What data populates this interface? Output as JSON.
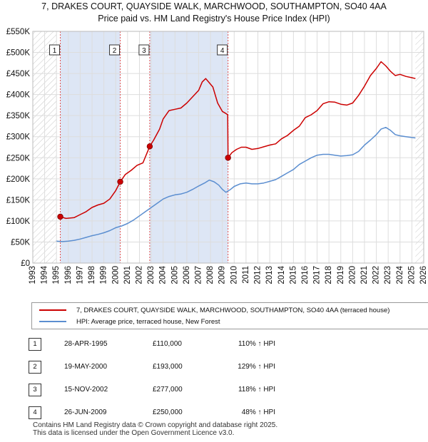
{
  "title_line1": "7, DRAKES COURT, QUAYSIDE WALK, MARCHWOOD, SOUTHAMPTON, SO40 4AA",
  "title_line2": "Price paid vs. HM Land Registry's House Price Index (HPI)",
  "colors": {
    "property": "#cc0000",
    "hpi": "#5b8ed0",
    "shade": "#dde6f5",
    "grid": "#dddddd",
    "marker_line": "#e05050"
  },
  "chart_data": {
    "type": "line",
    "title": "7, DRAKES COURT, QUAYSIDE WALK, MARCHWOOD, SOUTHAMPTON, SO40 4AA",
    "subtitle": "Price paid vs. HM Land Registry's House Price Index (HPI)",
    "xlim": [
      1993,
      2026
    ],
    "ylim": [
      0,
      550000
    ],
    "x_ticks": [
      1993,
      1994,
      1995,
      1996,
      1997,
      1998,
      1999,
      2000,
      2001,
      2002,
      2003,
      2004,
      2005,
      2006,
      2007,
      2008,
      2009,
      2010,
      2011,
      2012,
      2013,
      2014,
      2015,
      2016,
      2017,
      2018,
      2019,
      2020,
      2021,
      2022,
      2023,
      2024,
      2025,
      2026
    ],
    "y_ticks": [
      {
        "value": 0,
        "label": "£0"
      },
      {
        "value": 50000,
        "label": "£50K"
      },
      {
        "value": 100000,
        "label": "£100K"
      },
      {
        "value": 150000,
        "label": "£150K"
      },
      {
        "value": 200000,
        "label": "£200K"
      },
      {
        "value": 250000,
        "label": "£250K"
      },
      {
        "value": 300000,
        "label": "£300K"
      },
      {
        "value": 350000,
        "label": "£350K"
      },
      {
        "value": 400000,
        "label": "£400K"
      },
      {
        "value": 450000,
        "label": "£450K"
      },
      {
        "value": 500000,
        "label": "£500K"
      },
      {
        "value": 550000,
        "label": "£550K"
      }
    ],
    "grid": true,
    "shaded_spans": [
      [
        1995.32,
        2000.38
      ],
      [
        2002.87,
        2009.48
      ]
    ],
    "hatched_spans": [
      [
        1993,
        1995.0
      ],
      [
        2025.3,
        2026
      ]
    ],
    "series": [
      {
        "name": "7, DRAKES COURT, QUAYSIDE WALK, MARCHWOOD, SOUTHAMPTON, SO40 4AA (terraced house)",
        "color": "#cc0000",
        "x": [
          1995.32,
          1995.8,
          1996.5,
          1997.0,
          1997.5,
          1998.0,
          1998.5,
          1999.0,
          1999.5,
          2000.0,
          2000.38,
          2000.8,
          2001.3,
          2001.8,
          2002.3,
          2002.87,
          2003.2,
          2003.7,
          2004.0,
          2004.5,
          2005.0,
          2005.5,
          2006.0,
          2006.5,
          2007.0,
          2007.3,
          2007.6,
          2007.9,
          2008.2,
          2008.6,
          2009.0,
          2009.3,
          2009.45,
          2009.48,
          2009.8,
          2010.2,
          2010.6,
          2011.0,
          2011.5,
          2012.0,
          2012.5,
          2013.0,
          2013.5,
          2014.0,
          2014.5,
          2015.0,
          2015.5,
          2016.0,
          2016.5,
          2017.0,
          2017.5,
          2018.0,
          2018.5,
          2019.0,
          2019.5,
          2020.0,
          2020.5,
          2021.0,
          2021.5,
          2022.0,
          2022.4,
          2022.8,
          2023.2,
          2023.6,
          2024.0,
          2024.5,
          2025.0,
          2025.3
        ],
        "y": [
          110000,
          106000,
          108000,
          115000,
          122000,
          132000,
          138000,
          142000,
          152000,
          172000,
          193000,
          210000,
          220000,
          232000,
          238000,
          277000,
          292000,
          318000,
          342000,
          362000,
          365000,
          368000,
          380000,
          395000,
          410000,
          430000,
          438000,
          428000,
          418000,
          380000,
          360000,
          355000,
          352000,
          250000,
          262000,
          270000,
          275000,
          275000,
          270000,
          272000,
          276000,
          280000,
          283000,
          295000,
          303000,
          315000,
          325000,
          345000,
          352000,
          362000,
          378000,
          383000,
          382000,
          377000,
          375000,
          380000,
          398000,
          420000,
          445000,
          462000,
          478000,
          468000,
          455000,
          445000,
          448000,
          443000,
          440000,
          438000
        ]
      },
      {
        "name": "HPI: Average price, terraced house, New Forest",
        "color": "#5b8ed0",
        "x": [
          1995.0,
          1995.5,
          1996.0,
          1996.5,
          1997.0,
          1997.5,
          1998.0,
          1998.5,
          1999.0,
          1999.5,
          2000.0,
          2000.5,
          2001.0,
          2001.5,
          2002.0,
          2002.5,
          2003.0,
          2003.5,
          2004.0,
          2004.5,
          2005.0,
          2005.5,
          2006.0,
          2006.5,
          2007.0,
          2007.5,
          2007.9,
          2008.3,
          2008.7,
          2009.0,
          2009.3,
          2009.7,
          2010.0,
          2010.5,
          2011.0,
          2011.5,
          2012.0,
          2012.5,
          2013.0,
          2013.5,
          2014.0,
          2014.5,
          2015.0,
          2015.5,
          2016.0,
          2016.5,
          2017.0,
          2017.5,
          2018.0,
          2018.5,
          2019.0,
          2019.5,
          2020.0,
          2020.5,
          2021.0,
          2021.5,
          2022.0,
          2022.4,
          2022.8,
          2023.2,
          2023.6,
          2024.0,
          2024.5,
          2025.0,
          2025.3
        ],
        "y": [
          52000,
          51000,
          52000,
          54000,
          57000,
          61000,
          65000,
          68000,
          72000,
          77000,
          84000,
          88000,
          94000,
          102000,
          112000,
          122000,
          132000,
          142000,
          152000,
          158000,
          162000,
          164000,
          168000,
          175000,
          183000,
          190000,
          197000,
          193000,
          185000,
          175000,
          168000,
          175000,
          182000,
          188000,
          190000,
          188000,
          188000,
          190000,
          194000,
          198000,
          206000,
          214000,
          222000,
          234000,
          242000,
          250000,
          256000,
          258000,
          258000,
          256000,
          254000,
          255000,
          257000,
          265000,
          280000,
          292000,
          305000,
          318000,
          322000,
          315000,
          305000,
          302000,
          300000,
          298000,
          297000
        ]
      }
    ],
    "sales": [
      {
        "label": "1",
        "x": 1995.32,
        "y": 110000
      },
      {
        "label": "2",
        "x": 2000.38,
        "y": 193000
      },
      {
        "label": "3",
        "x": 2002.87,
        "y": 277000
      },
      {
        "label": "4",
        "x": 2009.48,
        "y": 250000
      }
    ]
  },
  "legend": {
    "property_label": "7, DRAKES COURT, QUAYSIDE WALK, MARCHWOOD, SOUTHAMPTON, SO40 4AA (terraced house)",
    "hpi_label": "HPI: Average price, terraced house, New Forest"
  },
  "sales_table": [
    {
      "num": "1",
      "date": "28-APR-1995",
      "price": "£110,000",
      "hpi": "110% ↑ HPI"
    },
    {
      "num": "2",
      "date": "19-MAY-2000",
      "price": "£193,000",
      "hpi": "129% ↑ HPI"
    },
    {
      "num": "3",
      "date": "15-NOV-2002",
      "price": "£277,000",
      "hpi": "118% ↑ HPI"
    },
    {
      "num": "4",
      "date": "26-JUN-2009",
      "price": "£250,000",
      "hpi": "48% ↑ HPI"
    }
  ],
  "footer": {
    "line1": "Contains HM Land Registry data © Crown copyright and database right 2025.",
    "line2": "This data is licensed under the Open Government Licence v3.0."
  }
}
